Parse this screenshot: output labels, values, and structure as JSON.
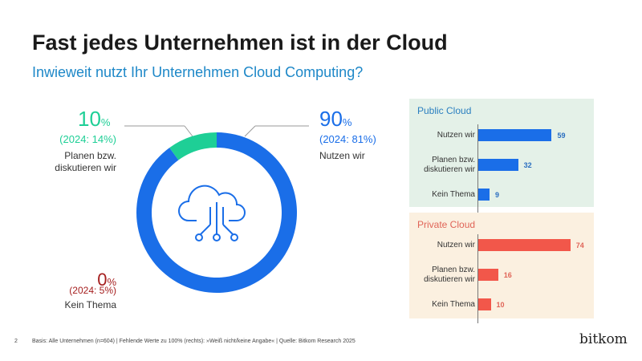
{
  "title": "Fast jedes Unternehmen ist in der Cloud",
  "subtitle": "Inwieweit nutzt Ihr Unternehmen Cloud Computing?",
  "colors": {
    "blue": "#1a6ee8",
    "green": "#1ecf96",
    "red": "#a51e1e",
    "public_bg": "#e4f1e8",
    "private_bg": "#fbf0e0",
    "private_bar": "#f2574a",
    "public_title": "#2a7fc0",
    "private_title": "#e06457"
  },
  "chart_data": [
    {
      "type": "pie",
      "subtype": "donut",
      "slices": [
        {
          "value": "90",
          "unit": "%",
          "prev": "(2024: 81%)",
          "label": "Nutzen wir",
          "color": "#1a6ee8"
        },
        {
          "value": "10",
          "unit": "%",
          "prev": "(2024: 14%)",
          "label": "Planen bzw. diskutieren wir",
          "color": "#1ecf96"
        },
        {
          "value": "0",
          "unit": "%",
          "prev": "(2024: 5%)",
          "label": "Kein Thema",
          "color": "#a51e1e"
        }
      ],
      "center_icon": "cloud-network-icon"
    },
    {
      "type": "bar",
      "orientation": "horizontal",
      "title": "Public Cloud",
      "categories": [
        "Nutzen wir",
        "Planen bzw. diskutieren wir",
        "Kein Thema"
      ],
      "values": [
        59,
        32,
        9
      ]
    },
    {
      "type": "bar",
      "orientation": "horizontal",
      "title": "Private Cloud",
      "categories": [
        "Nutzen wir",
        "Planen bzw. diskutieren wir",
        "Kein Thema"
      ],
      "values": [
        74,
        16,
        10
      ]
    }
  ],
  "footer": {
    "page": "2",
    "note": "Basis: Alle Unternehmen (n=604) | Fehlende Werte zu 100% (rechts): »Weiß nicht/keine Angabe« | Quelle: Bitkom Research 2025",
    "logo": "bitkom"
  }
}
